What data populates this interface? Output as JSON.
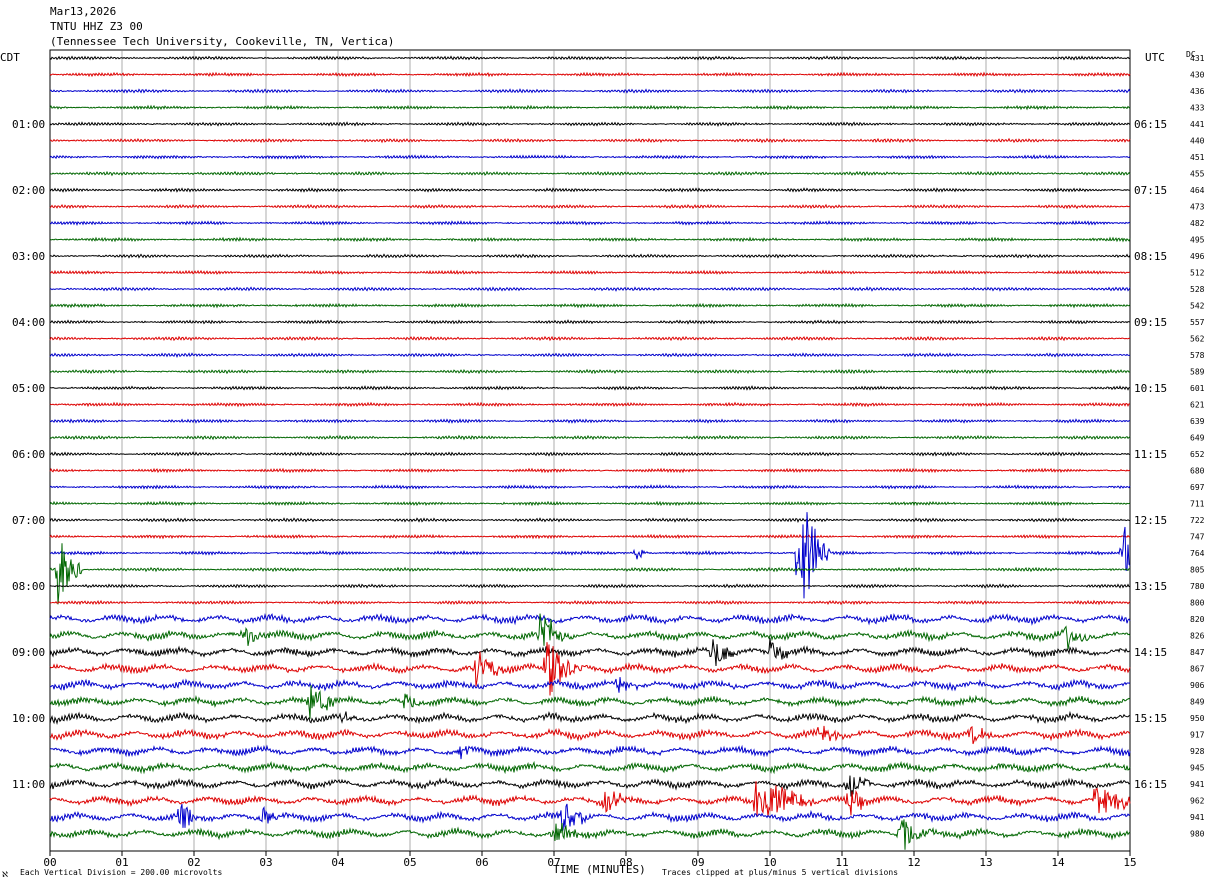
{
  "header": {
    "date": "Mar13,2026",
    "station": "TNTU HHZ Z3 00",
    "location": "(Tennessee Tech University, Cookeville, TN, Vertica)"
  },
  "left_zone": "CDT",
  "right_zone": "UTC",
  "dc_label": "DC",
  "footer": {
    "scale": "Each Vertical Division =  200.00 microvolts",
    "xlabel": "TIME (MINUTES)",
    "clip": "Traces clipped at plus/minus 5 vertical divisions",
    "corner": "ℵ"
  },
  "colors": {
    "trace_cycle": [
      "#000000",
      "#dd0000",
      "#0000cc",
      "#006600"
    ],
    "grid": "#000000"
  },
  "chart_data": {
    "type": "line",
    "title": "TNTU HHZ Z3 00",
    "xlabel": "TIME (MINUTES)",
    "xlim": [
      0,
      15
    ],
    "x_ticks": [
      "00",
      "01",
      "02",
      "03",
      "04",
      "05",
      "06",
      "07",
      "08",
      "09",
      "10",
      "11",
      "12",
      "13",
      "14",
      "15"
    ],
    "trace_count": 48,
    "left_hour_labels": [
      "01:00",
      "02:00",
      "03:00",
      "04:00",
      "05:00",
      "06:00",
      "07:00",
      "08:00",
      "09:00",
      "10:00",
      "11:00"
    ],
    "right_hour_labels": [
      "06:15",
      "07:15",
      "08:15",
      "09:15",
      "10:15",
      "11:15",
      "12:15",
      "13:15",
      "14:15",
      "15:15",
      "16:15"
    ],
    "dc_offsets": [
      431,
      430,
      436,
      433,
      441,
      440,
      451,
      455,
      464,
      473,
      482,
      495,
      496,
      512,
      528,
      542,
      557,
      562,
      578,
      589,
      601,
      621,
      639,
      649,
      652,
      680,
      697,
      711,
      722,
      747,
      764,
      805,
      780,
      800,
      820,
      826,
      847,
      867,
      906,
      849,
      950,
      917,
      928,
      945,
      941,
      962,
      941,
      980
    ],
    "events": [
      {
        "trace": 30,
        "minute": 10.4,
        "amp": 9.0,
        "dur": 0.45
      },
      {
        "trace": 30,
        "minute": 8.15,
        "amp": 1.0,
        "dur": 0.15
      },
      {
        "trace": 30,
        "minute": 14.9,
        "amp": 4.0,
        "dur": 0.3
      },
      {
        "trace": 31,
        "minute": 0.1,
        "amp": 5.0,
        "dur": 0.35
      },
      {
        "trace": 35,
        "minute": 6.8,
        "amp": 3.5,
        "dur": 0.4
      },
      {
        "trace": 35,
        "minute": 2.7,
        "amp": 1.5,
        "dur": 0.35
      },
      {
        "trace": 35,
        "minute": 14.1,
        "amp": 2.5,
        "dur": 0.35
      },
      {
        "trace": 36,
        "minute": 9.2,
        "amp": 2.2,
        "dur": 0.4
      },
      {
        "trace": 36,
        "minute": 10.0,
        "amp": 1.8,
        "dur": 0.3
      },
      {
        "trace": 37,
        "minute": 6.9,
        "amp": 4.0,
        "dur": 0.5
      },
      {
        "trace": 37,
        "minute": 5.9,
        "amp": 3.0,
        "dur": 0.4
      },
      {
        "trace": 38,
        "minute": 7.9,
        "amp": 1.5,
        "dur": 0.3
      },
      {
        "trace": 39,
        "minute": 3.6,
        "amp": 2.5,
        "dur": 0.4
      },
      {
        "trace": 39,
        "minute": 4.9,
        "amp": 1.5,
        "dur": 0.3
      },
      {
        "trace": 40,
        "minute": 4.05,
        "amp": 1.0,
        "dur": 0.2
      },
      {
        "trace": 41,
        "minute": 10.7,
        "amp": 1.5,
        "dur": 0.3
      },
      {
        "trace": 41,
        "minute": 12.8,
        "amp": 1.5,
        "dur": 0.3
      },
      {
        "trace": 42,
        "minute": 5.7,
        "amp": 1.2,
        "dur": 0.2
      },
      {
        "trace": 44,
        "minute": 11.1,
        "amp": 2.0,
        "dur": 0.3
      },
      {
        "trace": 45,
        "minute": 9.8,
        "amp": 3.5,
        "dur": 0.8
      },
      {
        "trace": 45,
        "minute": 7.7,
        "amp": 1.5,
        "dur": 0.4
      },
      {
        "trace": 45,
        "minute": 11.1,
        "amp": 2.0,
        "dur": 0.3
      },
      {
        "trace": 45,
        "minute": 14.5,
        "amp": 2.2,
        "dur": 0.6
      },
      {
        "trace": 46,
        "minute": 1.8,
        "amp": 2.0,
        "dur": 0.3
      },
      {
        "trace": 46,
        "minute": 2.95,
        "amp": 1.8,
        "dur": 0.25
      },
      {
        "trace": 46,
        "minute": 7.1,
        "amp": 2.5,
        "dur": 0.4
      },
      {
        "trace": 47,
        "minute": 11.8,
        "amp": 2.5,
        "dur": 0.5
      },
      {
        "trace": 47,
        "minute": 7.0,
        "amp": 1.5,
        "dur": 0.4
      }
    ]
  }
}
